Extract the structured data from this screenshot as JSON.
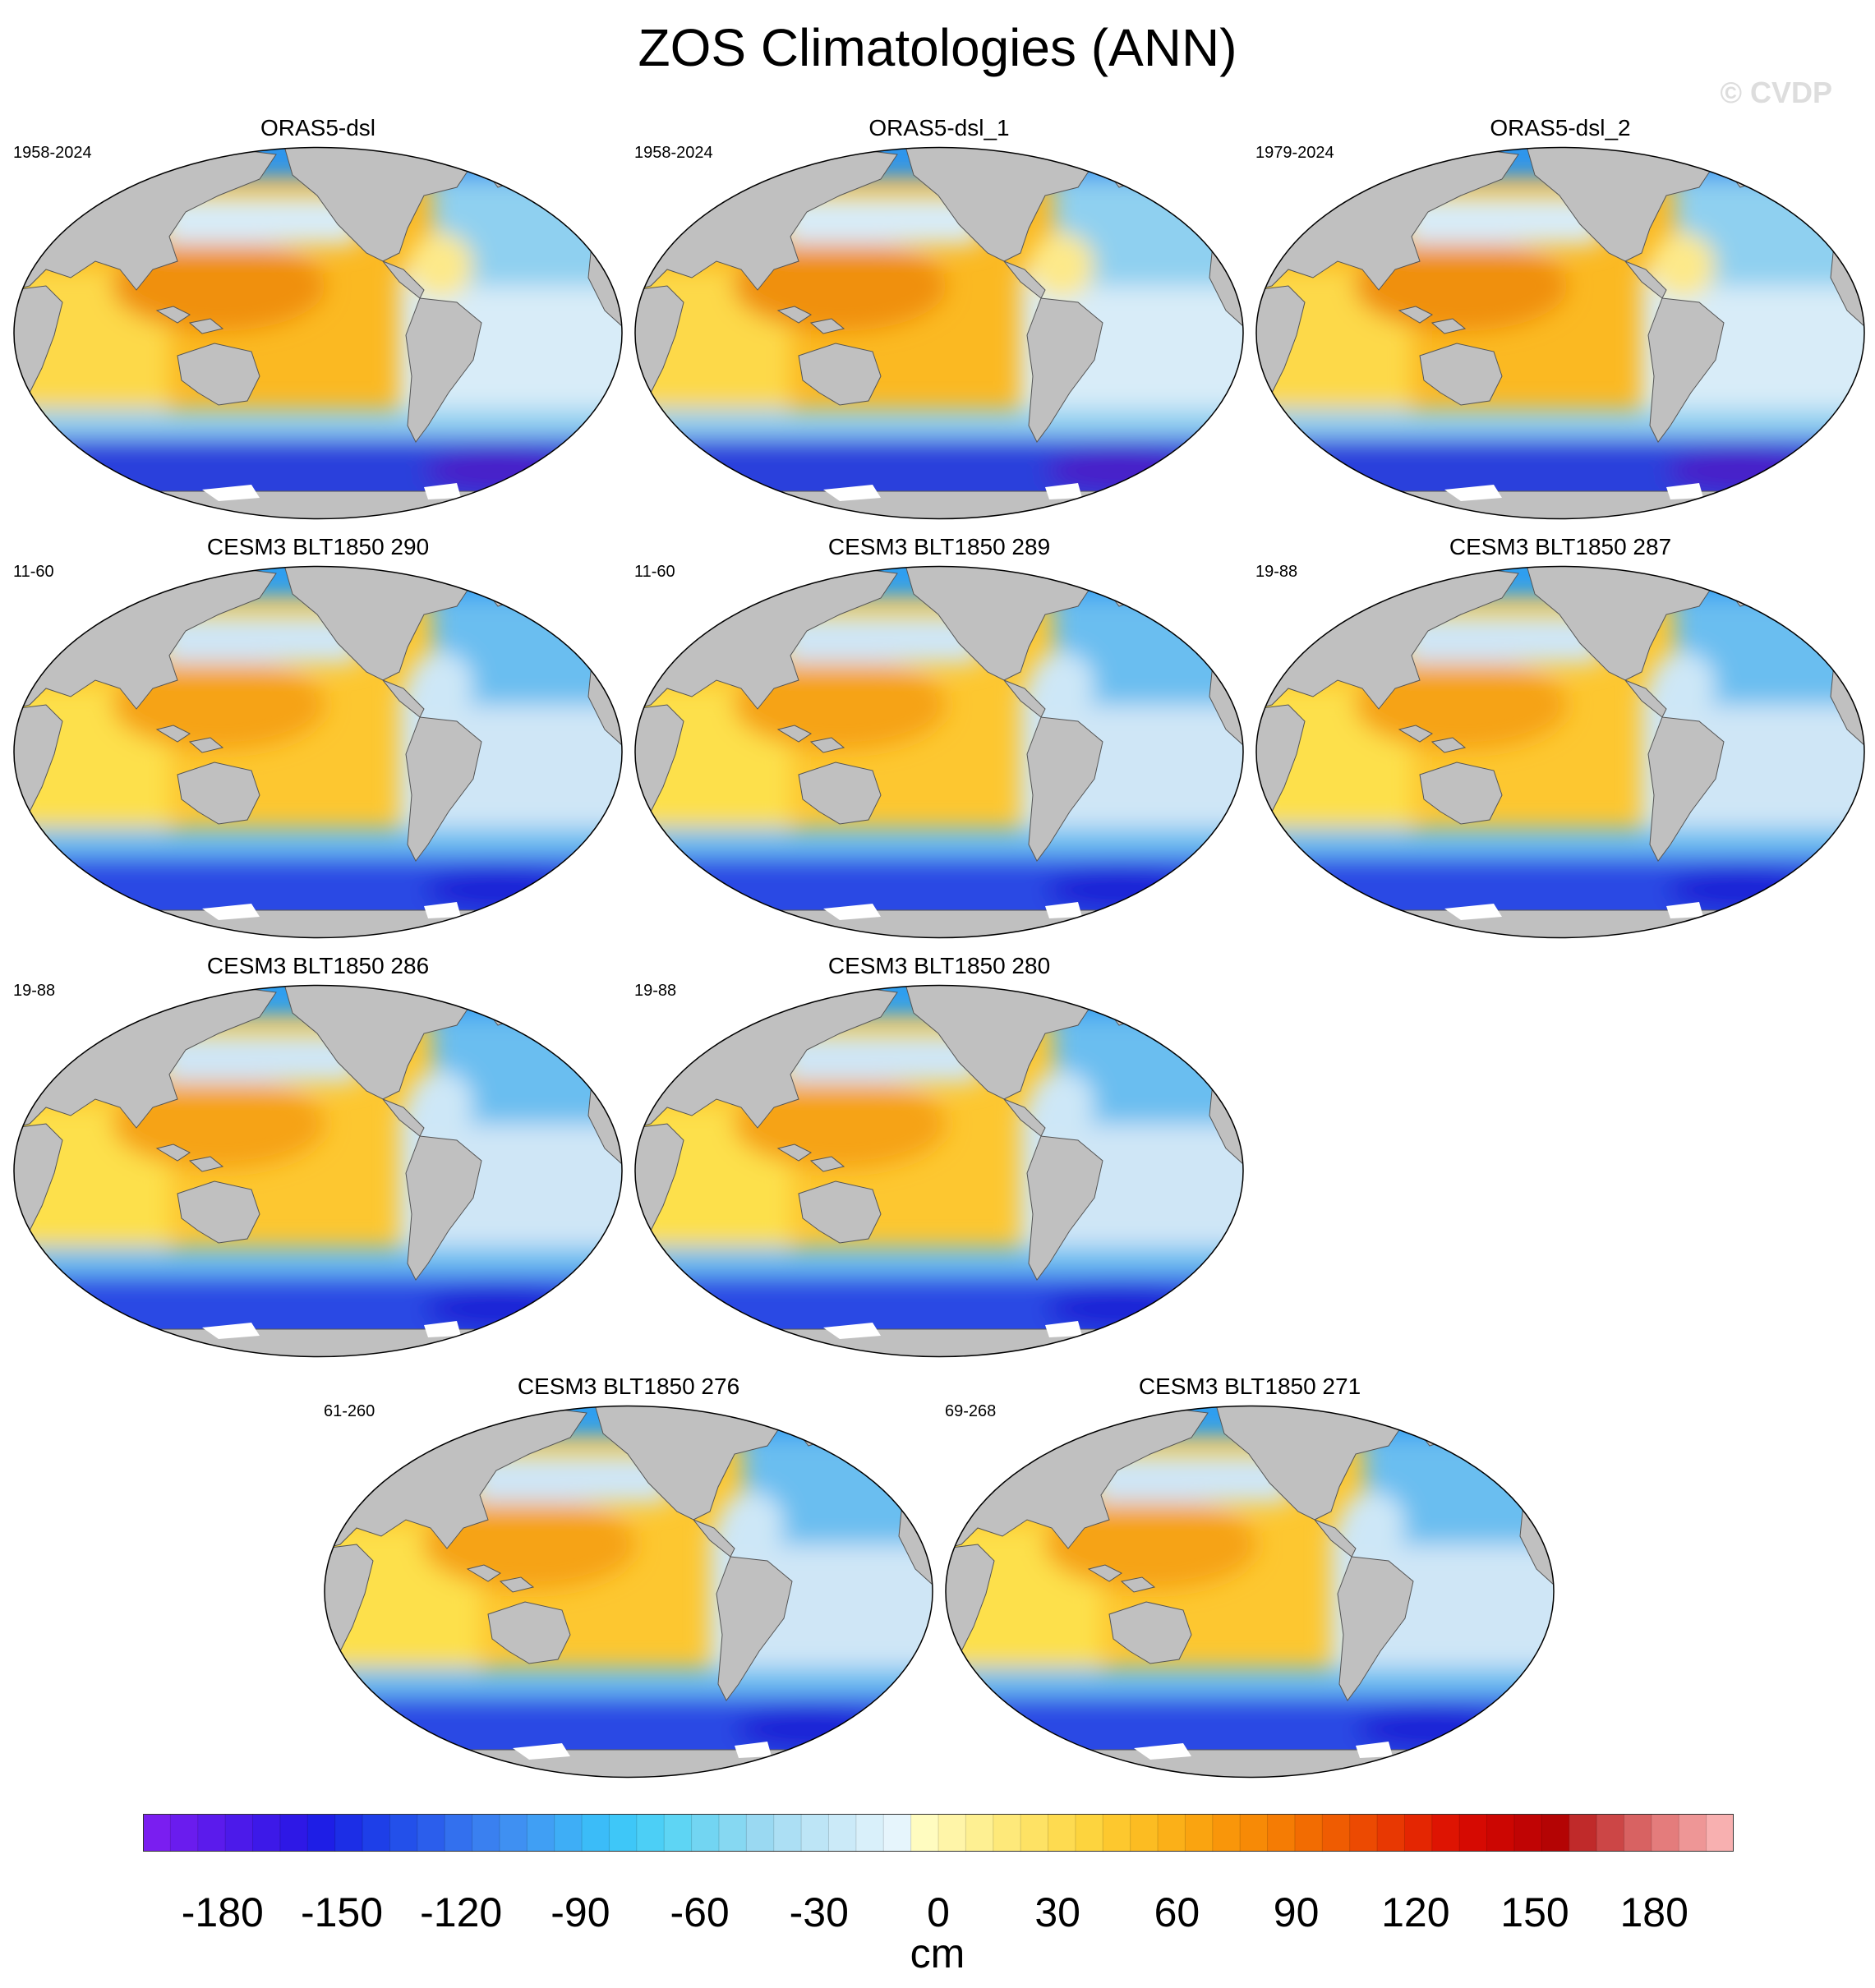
{
  "title": "ZOS Climatologies (ANN)",
  "watermark": "© CVDP",
  "variant_colors": {
    "reanalysis": {
      "warm_pool": "#f09010",
      "pacific": "#fbb922",
      "indian": "#fdd94a",
      "atlantic_north": "#8fd0f0",
      "atlantic_south": "#d8ecf8",
      "atlantic_tropical": "#fde98a",
      "southern": "#2a3fdc",
      "southern_deep": "#4a1ec8",
      "arctic": "#2a94f0"
    },
    "model": {
      "warm_pool": "#f6a315",
      "pacific": "#fdc730",
      "indian": "#fde04c",
      "atlantic_north": "#6bbef0",
      "atlantic_south": "#cfe6f6",
      "atlantic_tropical": "#cde7f7",
      "southern": "#2b48e4",
      "southern_deep": "#1d24d6",
      "arctic": "#2a9ef3"
    }
  },
  "land_color": "#c0c0c0",
  "panels": [
    {
      "title": "ORAS5-dsl",
      "period": "1958-2024",
      "variant": "reanalysis"
    },
    {
      "title": "ORAS5-dsl_1",
      "period": "1958-2024",
      "variant": "reanalysis"
    },
    {
      "title": "ORAS5-dsl_2",
      "period": "1979-2024",
      "variant": "reanalysis"
    },
    {
      "title": "CESM3 BLT1850 290",
      "period": "11-60",
      "variant": "model"
    },
    {
      "title": "CESM3 BLT1850 289",
      "period": "11-60",
      "variant": "model"
    },
    {
      "title": "CESM3 BLT1850 287",
      "period": "19-88",
      "variant": "model"
    },
    {
      "title": "CESM3 BLT1850 286",
      "period": "19-88",
      "variant": "model"
    },
    {
      "title": "CESM3 BLT1850 280",
      "period": "19-88",
      "variant": "model"
    },
    {
      "title": "CESM3 BLT1850 276",
      "period": "61-260",
      "variant": "model"
    },
    {
      "title": "CESM3 BLT1850 271",
      "period": "69-268",
      "variant": "model"
    }
  ],
  "colorbar": {
    "units": "cm",
    "min": -200,
    "max": 200,
    "step": 10,
    "tick_labels": [
      "-180",
      "-150",
      "-120",
      "-90",
      "-60",
      "-30",
      "0",
      "30",
      "60",
      "90",
      "120",
      "150",
      "180"
    ],
    "colors": [
      "#7a1ef0",
      "#6a1cee",
      "#5b1bec",
      "#4c1aea",
      "#3d19e8",
      "#2e18e6",
      "#1e1ee6",
      "#1c2ee6",
      "#1e3fe8",
      "#2350ea",
      "#2b5eec",
      "#3370ee",
      "#3a80f0",
      "#3f90f2",
      "#409ff4",
      "#3eaef6",
      "#3bbcf8",
      "#3ec7f8",
      "#4ccff6",
      "#5ed5f4",
      "#72d5f2",
      "#86d8f2",
      "#9ad9f2",
      "#acdff4",
      "#bde5f6",
      "#cbeaf8",
      "#d9f0fa",
      "#e6f5fc",
      "#fffcc0",
      "#fff5a8",
      "#fef092",
      "#fee97a",
      "#fee264",
      "#fedb50",
      "#fdd43e",
      "#fdc82e",
      "#fcbc22",
      "#fbb018",
      "#faa410",
      "#f9960a",
      "#f78a06",
      "#f57c04",
      "#f26c02",
      "#ef5c02",
      "#ec4a02",
      "#e83802",
      "#e42602",
      "#de1402",
      "#d60a02",
      "#cc0602",
      "#c00404",
      "#b40404",
      "#c02a2a",
      "#cc4646",
      "#d86262",
      "#e47c7c",
      "#ee9696",
      "#f8b0b0"
    ]
  }
}
